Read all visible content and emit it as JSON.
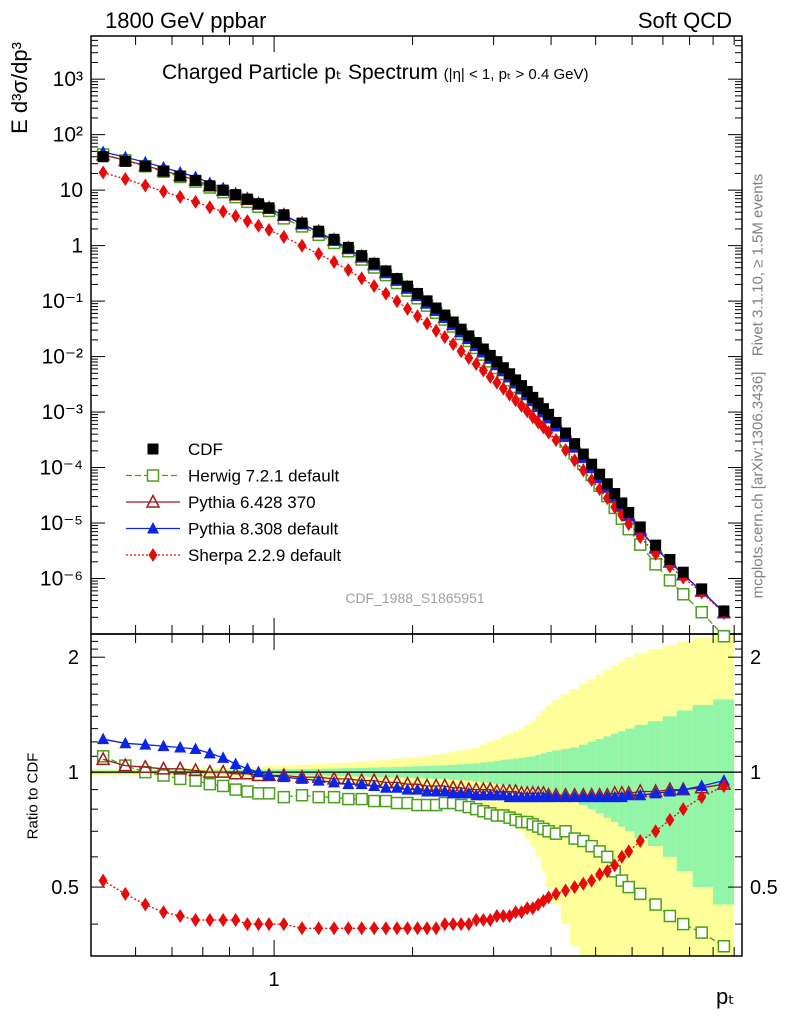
{
  "header": {
    "left": "1800 GeV ppbar",
    "right": "Soft QCD"
  },
  "side_labels": {
    "rivet": "Rivet 3.1.10, ≥ 1.5M events",
    "mcplots": "mcplots.cern.ch [arXiv:1306.3436]"
  },
  "watermark": "CDF_1988_S1865951",
  "chart_data": [
    {
      "type": "scatter",
      "title": "Charged Particle pₜ Spectrum",
      "title_sub": "(|η| < 1, pₜ > 0.4 GeV)",
      "ylabel": "E d³σ/dp³",
      "xlabel": "pₜ",
      "xscale": "log",
      "yscale": "log",
      "xlim": [
        0.4,
        10.4
      ],
      "ylim": [
        1e-07,
        6000
      ],
      "x_ticks": [
        {
          "value": 1,
          "label": "1"
        }
      ],
      "y_ticks": [
        {
          "value": 1e-06,
          "label": "10⁻⁶"
        },
        {
          "value": 1e-05,
          "label": "10⁻⁵"
        },
        {
          "value": 0.0001,
          "label": "10⁻⁴"
        },
        {
          "value": 0.001,
          "label": "10⁻³"
        },
        {
          "value": 0.01,
          "label": "10⁻²"
        },
        {
          "value": 0.1,
          "label": "10⁻¹"
        },
        {
          "value": 1,
          "label": "1"
        },
        {
          "value": 10,
          "label": "10"
        },
        {
          "value": 100,
          "label": "10²"
        },
        {
          "value": 1000,
          "label": "10³"
        }
      ],
      "legend_position": "bottom-left",
      "x": [
        0.425,
        0.475,
        0.525,
        0.575,
        0.625,
        0.675,
        0.725,
        0.775,
        0.825,
        0.875,
        0.925,
        0.975,
        1.05,
        1.15,
        1.25,
        1.35,
        1.45,
        1.55,
        1.65,
        1.75,
        1.85,
        1.95,
        2.05,
        2.15,
        2.25,
        2.35,
        2.45,
        2.55,
        2.65,
        2.75,
        2.85,
        2.95,
        3.05,
        3.15,
        3.25,
        3.35,
        3.45,
        3.55,
        3.65,
        3.75,
        3.85,
        3.95,
        4.1,
        4.3,
        4.5,
        4.7,
        4.9,
        5.1,
        5.3,
        5.5,
        5.7,
        5.9,
        6.25,
        6.75,
        7.25,
        7.75,
        8.5,
        9.5
      ],
      "series": [
        {
          "name": "CDF",
          "color": "#000000",
          "marker": "square-filled",
          "values": [
            40,
            33,
            27,
            22,
            18,
            15,
            12,
            10,
            8.3,
            6.9,
            5.7,
            4.8,
            3.6,
            2.55,
            1.82,
            1.3,
            0.93,
            0.66,
            0.48,
            0.35,
            0.255,
            0.186,
            0.137,
            0.101,
            0.075,
            0.056,
            0.042,
            0.0312,
            0.0236,
            0.0179,
            0.0137,
            0.0105,
            0.0081,
            0.0063,
            0.0049,
            0.0038,
            0.003,
            0.00235,
            0.00184,
            0.00145,
            0.00115,
            0.00091,
            0.00065,
            0.00042,
            0.00027,
            0.000175,
            0.000115,
            7.6e-05,
            5.1e-05,
            3.4e-05,
            2.3e-05,
            1.55e-05,
            8.5e-06,
            4e-06,
            2.2e-06,
            1.3e-06,
            6.5e-07,
            2.6e-07
          ]
        },
        {
          "name": "Herwig 7.2.1 default",
          "color": "#4c9e1e",
          "marker": "square-open",
          "line": "dashed",
          "ratio": [
            1.1,
            1.04,
            1.0,
            0.98,
            0.96,
            0.95,
            0.93,
            0.92,
            0.9,
            0.89,
            0.88,
            0.88,
            0.86,
            0.87,
            0.86,
            0.86,
            0.85,
            0.85,
            0.84,
            0.84,
            0.83,
            0.83,
            0.82,
            0.82,
            0.82,
            0.83,
            0.83,
            0.82,
            0.81,
            0.8,
            0.79,
            0.78,
            0.77,
            0.77,
            0.76,
            0.75,
            0.74,
            0.74,
            0.73,
            0.72,
            0.71,
            0.7,
            0.69,
            0.7,
            0.67,
            0.66,
            0.64,
            0.62,
            0.6,
            0.55,
            0.52,
            0.5,
            0.48,
            0.45,
            0.42,
            0.4,
            0.38,
            0.35
          ]
        },
        {
          "name": "Pythia 6.428 370",
          "color": "#9b1b1f",
          "marker": "triangle-open",
          "line": "solid",
          "ratio": [
            1.08,
            1.04,
            1.03,
            1.02,
            1.02,
            1.01,
            1.0,
            1.0,
            0.99,
            0.99,
            0.98,
            0.98,
            0.98,
            0.97,
            0.97,
            0.96,
            0.96,
            0.95,
            0.95,
            0.94,
            0.94,
            0.93,
            0.93,
            0.92,
            0.92,
            0.92,
            0.91,
            0.91,
            0.9,
            0.9,
            0.9,
            0.9,
            0.89,
            0.89,
            0.89,
            0.89,
            0.88,
            0.88,
            0.88,
            0.88,
            0.88,
            0.87,
            0.87,
            0.87,
            0.87,
            0.87,
            0.87,
            0.87,
            0.87,
            0.88,
            0.88,
            0.88,
            0.89,
            0.89,
            0.9,
            0.9,
            0.91,
            0.93
          ]
        },
        {
          "name": "Pythia 8.308 default",
          "color": "#0b24e6",
          "marker": "triangle-filled",
          "line": "solid",
          "ratio": [
            1.22,
            1.19,
            1.18,
            1.17,
            1.16,
            1.15,
            1.12,
            1.09,
            1.05,
            1.02,
            1.0,
            0.98,
            0.97,
            0.96,
            0.95,
            0.94,
            0.93,
            0.93,
            0.92,
            0.91,
            0.91,
            0.9,
            0.9,
            0.89,
            0.89,
            0.89,
            0.88,
            0.88,
            0.88,
            0.87,
            0.87,
            0.87,
            0.87,
            0.87,
            0.86,
            0.86,
            0.86,
            0.86,
            0.86,
            0.86,
            0.86,
            0.86,
            0.86,
            0.86,
            0.86,
            0.86,
            0.86,
            0.86,
            0.86,
            0.86,
            0.86,
            0.87,
            0.87,
            0.88,
            0.89,
            0.9,
            0.92,
            0.95
          ]
        },
        {
          "name": "Sherpa 2.2.9 default",
          "color": "#e60a0a",
          "marker": "diamond-filled",
          "line": "dotted",
          "ratio": [
            0.52,
            0.48,
            0.45,
            0.43,
            0.42,
            0.41,
            0.41,
            0.41,
            0.41,
            0.4,
            0.4,
            0.4,
            0.4,
            0.39,
            0.39,
            0.39,
            0.39,
            0.39,
            0.39,
            0.39,
            0.39,
            0.39,
            0.39,
            0.39,
            0.39,
            0.4,
            0.4,
            0.4,
            0.4,
            0.41,
            0.41,
            0.41,
            0.42,
            0.42,
            0.42,
            0.43,
            0.43,
            0.44,
            0.44,
            0.45,
            0.46,
            0.47,
            0.48,
            0.49,
            0.5,
            0.51,
            0.52,
            0.54,
            0.55,
            0.57,
            0.6,
            0.62,
            0.66,
            0.7,
            0.75,
            0.8,
            0.86,
            0.92
          ]
        }
      ]
    },
    {
      "type": "line",
      "ylabel": "Ratio to CDF",
      "xlabel": "pₜ",
      "xscale": "log",
      "ylim": [
        0.33,
        2.3
      ],
      "y_ticks": [
        {
          "value": 0.5,
          "label": "0.5"
        },
        {
          "value": 1,
          "label": "1"
        },
        {
          "value": 2,
          "label": "2"
        }
      ],
      "x_ticks": [
        {
          "value": 1,
          "label": "1"
        }
      ],
      "reference_line": 1,
      "band_colors": {
        "inner": "#92f5a8",
        "outer": "#ffff99"
      },
      "band_inner_halfwidth": [
        0.01,
        0.01,
        0.01,
        0.012,
        0.012,
        0.012,
        0.013,
        0.013,
        0.014,
        0.015,
        0.015,
        0.016,
        0.017,
        0.018,
        0.02,
        0.022,
        0.024,
        0.026,
        0.028,
        0.03,
        0.032,
        0.034,
        0.036,
        0.038,
        0.04,
        0.042,
        0.045,
        0.048,
        0.05,
        0.055,
        0.06,
        0.065,
        0.07,
        0.075,
        0.08,
        0.085,
        0.09,
        0.095,
        0.1,
        0.11,
        0.12,
        0.13,
        0.14,
        0.15,
        0.16,
        0.18,
        0.2,
        0.22,
        0.24,
        0.26,
        0.28,
        0.3,
        0.33,
        0.36,
        0.4,
        0.45,
        0.5,
        0.55
      ],
      "band_outer_halfwidth": [
        0.02,
        0.02,
        0.02,
        0.025,
        0.025,
        0.025,
        0.027,
        0.028,
        0.03,
        0.032,
        0.034,
        0.036,
        0.04,
        0.045,
        0.05,
        0.055,
        0.06,
        0.066,
        0.072,
        0.078,
        0.085,
        0.09,
        0.095,
        0.1,
        0.11,
        0.12,
        0.13,
        0.14,
        0.15,
        0.16,
        0.18,
        0.2,
        0.22,
        0.24,
        0.26,
        0.28,
        0.3,
        0.33,
        0.36,
        0.4,
        0.45,
        0.5,
        0.55,
        0.6,
        0.65,
        0.7,
        0.75,
        0.8,
        0.85,
        0.9,
        0.95,
        1.0,
        1.05,
        1.1,
        1.15,
        1.2,
        1.25,
        1.3
      ]
    }
  ]
}
